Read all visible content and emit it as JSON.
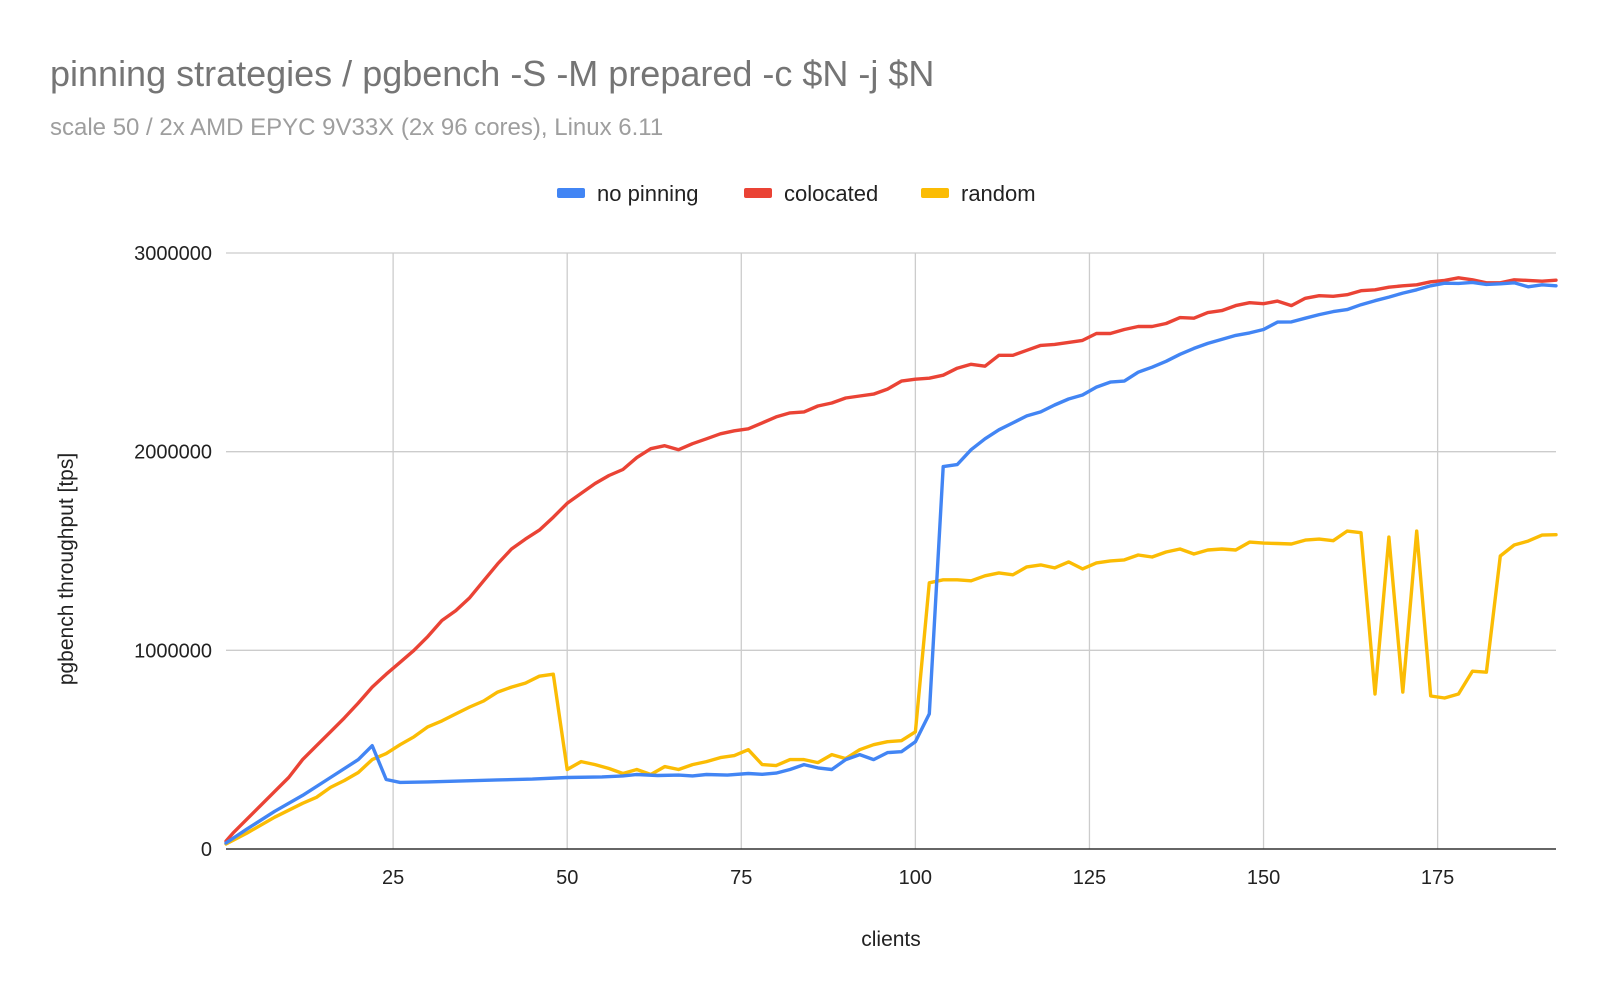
{
  "chart_data": {
    "type": "line",
    "title": "pinning strategies / pgbench -S -M prepared -c $N -j $N",
    "subtitle": "scale 50 / 2x AMD EPYC 9V33X (2x 96 cores), Linux 6.11",
    "xlabel": "clients",
    "ylabel": "pgbench throughput [tps]",
    "xlim": [
      1,
      192
    ],
    "ylim": [
      0,
      3000000
    ],
    "x_ticks": [
      25,
      50,
      75,
      100,
      125,
      150,
      175
    ],
    "y_ticks": [
      0,
      1000000,
      2000000,
      3000000
    ],
    "x_tick_labels": [
      "25",
      "50",
      "75",
      "100",
      "125",
      "150",
      "175"
    ],
    "y_tick_labels": [
      "0",
      "1000000",
      "2000000",
      "3000000"
    ],
    "grid": true,
    "legend_position": "top",
    "series": [
      {
        "name": "no pinning",
        "color": "#4285f4",
        "points": [
          [
            1,
            30000
          ],
          [
            4,
            100000
          ],
          [
            8,
            190000
          ],
          [
            12,
            270000
          ],
          [
            16,
            360000
          ],
          [
            20,
            450000
          ],
          [
            22,
            520000
          ],
          [
            24,
            350000
          ],
          [
            26,
            335000
          ],
          [
            30,
            338000
          ],
          [
            35,
            343000
          ],
          [
            40,
            348000
          ],
          [
            45,
            352000
          ],
          [
            50,
            360000
          ],
          [
            55,
            363000
          ],
          [
            58,
            368000
          ],
          [
            60,
            375000
          ],
          [
            63,
            370000
          ],
          [
            66,
            372000
          ],
          [
            68,
            368000
          ],
          [
            70,
            375000
          ],
          [
            73,
            372000
          ],
          [
            76,
            380000
          ],
          [
            78,
            376000
          ],
          [
            80,
            382000
          ],
          [
            82,
            400000
          ],
          [
            84,
            425000
          ],
          [
            86,
            408000
          ],
          [
            88,
            400000
          ],
          [
            90,
            450000
          ],
          [
            92,
            475000
          ],
          [
            94,
            450000
          ],
          [
            96,
            485000
          ],
          [
            98,
            490000
          ],
          [
            100,
            540000
          ],
          [
            102,
            680000
          ],
          [
            104,
            1925000
          ],
          [
            106,
            1935000
          ],
          [
            108,
            2010000
          ],
          [
            110,
            2065000
          ],
          [
            112,
            2110000
          ],
          [
            114,
            2145000
          ],
          [
            116,
            2180000
          ],
          [
            118,
            2200000
          ],
          [
            120,
            2235000
          ],
          [
            122,
            2265000
          ],
          [
            124,
            2285000
          ],
          [
            126,
            2325000
          ],
          [
            128,
            2350000
          ],
          [
            130,
            2355000
          ],
          [
            132,
            2400000
          ],
          [
            134,
            2425000
          ],
          [
            136,
            2455000
          ],
          [
            138,
            2490000
          ],
          [
            140,
            2520000
          ],
          [
            142,
            2545000
          ],
          [
            144,
            2565000
          ],
          [
            146,
            2585000
          ],
          [
            148,
            2598000
          ],
          [
            150,
            2615000
          ],
          [
            152,
            2652000
          ],
          [
            154,
            2653000
          ],
          [
            156,
            2672000
          ],
          [
            158,
            2690000
          ],
          [
            160,
            2705000
          ],
          [
            162,
            2715000
          ],
          [
            164,
            2740000
          ],
          [
            166,
            2760000
          ],
          [
            168,
            2778000
          ],
          [
            170,
            2798000
          ],
          [
            172,
            2815000
          ],
          [
            174,
            2835000
          ],
          [
            176,
            2848000
          ],
          [
            178,
            2847000
          ],
          [
            180,
            2852000
          ],
          [
            182,
            2842000
          ],
          [
            184,
            2845000
          ],
          [
            186,
            2850000
          ],
          [
            188,
            2830000
          ],
          [
            190,
            2840000
          ],
          [
            192,
            2835000
          ]
        ]
      },
      {
        "name": "colocated",
        "color": "#ea4335",
        "points": [
          [
            1,
            40000
          ],
          [
            2,
            80000
          ],
          [
            4,
            150000
          ],
          [
            6,
            220000
          ],
          [
            8,
            290000
          ],
          [
            10,
            360000
          ],
          [
            12,
            450000
          ],
          [
            14,
            520000
          ],
          [
            16,
            590000
          ],
          [
            18,
            660000
          ],
          [
            20,
            735000
          ],
          [
            22,
            815000
          ],
          [
            24,
            880000
          ],
          [
            26,
            940000
          ],
          [
            28,
            1000000
          ],
          [
            30,
            1070000
          ],
          [
            32,
            1150000
          ],
          [
            34,
            1200000
          ],
          [
            36,
            1265000
          ],
          [
            38,
            1350000
          ],
          [
            40,
            1435000
          ],
          [
            42,
            1510000
          ],
          [
            44,
            1560000
          ],
          [
            46,
            1605000
          ],
          [
            48,
            1670000
          ],
          [
            50,
            1740000
          ],
          [
            52,
            1790000
          ],
          [
            54,
            1840000
          ],
          [
            56,
            1880000
          ],
          [
            58,
            1910000
          ],
          [
            60,
            1970000
          ],
          [
            62,
            2015000
          ],
          [
            64,
            2030000
          ],
          [
            66,
            2010000
          ],
          [
            68,
            2040000
          ],
          [
            70,
            2065000
          ],
          [
            72,
            2090000
          ],
          [
            74,
            2105000
          ],
          [
            76,
            2115000
          ],
          [
            78,
            2145000
          ],
          [
            80,
            2175000
          ],
          [
            82,
            2195000
          ],
          [
            84,
            2200000
          ],
          [
            86,
            2230000
          ],
          [
            88,
            2245000
          ],
          [
            90,
            2270000
          ],
          [
            92,
            2280000
          ],
          [
            94,
            2290000
          ],
          [
            96,
            2315000
          ],
          [
            98,
            2355000
          ],
          [
            100,
            2365000
          ],
          [
            102,
            2370000
          ],
          [
            104,
            2385000
          ],
          [
            106,
            2420000
          ],
          [
            108,
            2440000
          ],
          [
            110,
            2430000
          ],
          [
            112,
            2485000
          ],
          [
            114,
            2485000
          ],
          [
            116,
            2510000
          ],
          [
            118,
            2535000
          ],
          [
            120,
            2540000
          ],
          [
            122,
            2550000
          ],
          [
            124,
            2560000
          ],
          [
            126,
            2595000
          ],
          [
            128,
            2595000
          ],
          [
            130,
            2615000
          ],
          [
            132,
            2630000
          ],
          [
            134,
            2630000
          ],
          [
            136,
            2645000
          ],
          [
            138,
            2675000
          ],
          [
            140,
            2672000
          ],
          [
            142,
            2700000
          ],
          [
            144,
            2710000
          ],
          [
            146,
            2735000
          ],
          [
            148,
            2750000
          ],
          [
            150,
            2745000
          ],
          [
            152,
            2758000
          ],
          [
            154,
            2735000
          ],
          [
            156,
            2772000
          ],
          [
            158,
            2785000
          ],
          [
            160,
            2782000
          ],
          [
            162,
            2790000
          ],
          [
            164,
            2810000
          ],
          [
            166,
            2815000
          ],
          [
            168,
            2828000
          ],
          [
            170,
            2835000
          ],
          [
            172,
            2840000
          ],
          [
            174,
            2855000
          ],
          [
            176,
            2862000
          ],
          [
            178,
            2875000
          ],
          [
            180,
            2865000
          ],
          [
            182,
            2850000
          ],
          [
            184,
            2850000
          ],
          [
            186,
            2865000
          ],
          [
            188,
            2862000
          ],
          [
            190,
            2858000
          ],
          [
            192,
            2863000
          ]
        ]
      },
      {
        "name": "random",
        "color": "#fbbc04",
        "points": [
          [
            1,
            25000
          ],
          [
            4,
            80000
          ],
          [
            8,
            160000
          ],
          [
            12,
            230000
          ],
          [
            14,
            260000
          ],
          [
            16,
            310000
          ],
          [
            18,
            345000
          ],
          [
            20,
            385000
          ],
          [
            22,
            450000
          ],
          [
            24,
            480000
          ],
          [
            26,
            525000
          ],
          [
            28,
            565000
          ],
          [
            30,
            615000
          ],
          [
            32,
            645000
          ],
          [
            34,
            680000
          ],
          [
            36,
            715000
          ],
          [
            38,
            745000
          ],
          [
            40,
            790000
          ],
          [
            42,
            815000
          ],
          [
            44,
            835000
          ],
          [
            46,
            870000
          ],
          [
            48,
            880000
          ],
          [
            50,
            400000
          ],
          [
            52,
            440000
          ],
          [
            54,
            425000
          ],
          [
            56,
            405000
          ],
          [
            58,
            380000
          ],
          [
            60,
            400000
          ],
          [
            62,
            375000
          ],
          [
            64,
            415000
          ],
          [
            66,
            400000
          ],
          [
            68,
            425000
          ],
          [
            70,
            440000
          ],
          [
            72,
            460000
          ],
          [
            74,
            470000
          ],
          [
            76,
            500000
          ],
          [
            78,
            425000
          ],
          [
            80,
            420000
          ],
          [
            82,
            450000
          ],
          [
            84,
            450000
          ],
          [
            86,
            435000
          ],
          [
            88,
            475000
          ],
          [
            90,
            455000
          ],
          [
            92,
            500000
          ],
          [
            94,
            525000
          ],
          [
            96,
            540000
          ],
          [
            98,
            545000
          ],
          [
            100,
            590000
          ],
          [
            102,
            1340000
          ],
          [
            104,
            1355000
          ],
          [
            106,
            1355000
          ],
          [
            108,
            1350000
          ],
          [
            110,
            1375000
          ],
          [
            112,
            1390000
          ],
          [
            114,
            1380000
          ],
          [
            116,
            1420000
          ],
          [
            118,
            1430000
          ],
          [
            120,
            1415000
          ],
          [
            122,
            1445000
          ],
          [
            124,
            1410000
          ],
          [
            126,
            1440000
          ],
          [
            128,
            1450000
          ],
          [
            130,
            1455000
          ],
          [
            132,
            1480000
          ],
          [
            134,
            1470000
          ],
          [
            136,
            1495000
          ],
          [
            138,
            1510000
          ],
          [
            140,
            1485000
          ],
          [
            142,
            1505000
          ],
          [
            144,
            1510000
          ],
          [
            146,
            1505000
          ],
          [
            148,
            1545000
          ],
          [
            150,
            1540000
          ],
          [
            152,
            1538000
          ],
          [
            154,
            1535000
          ],
          [
            156,
            1555000
          ],
          [
            158,
            1560000
          ],
          [
            160,
            1552000
          ],
          [
            162,
            1600000
          ],
          [
            164,
            1592000
          ],
          [
            166,
            780000
          ],
          [
            168,
            1570000
          ],
          [
            170,
            790000
          ],
          [
            172,
            1600000
          ],
          [
            174,
            770000
          ],
          [
            176,
            760000
          ],
          [
            178,
            780000
          ],
          [
            180,
            895000
          ],
          [
            182,
            890000
          ],
          [
            184,
            1475000
          ],
          [
            186,
            1530000
          ],
          [
            188,
            1550000
          ],
          [
            190,
            1580000
          ],
          [
            192,
            1582000
          ]
        ]
      }
    ]
  }
}
